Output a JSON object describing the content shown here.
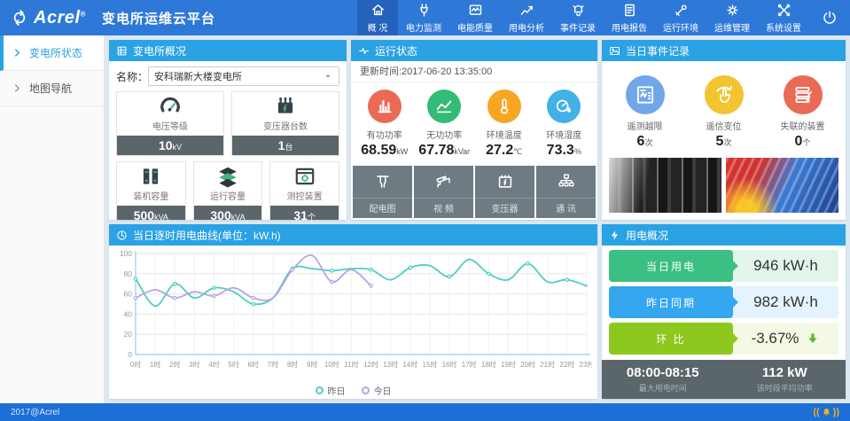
{
  "header": {
    "logo": "Acrel",
    "logo_reg": "®",
    "title": "变电所运维云平台",
    "nav": [
      {
        "label": "概 况"
      },
      {
        "label": "电力监测"
      },
      {
        "label": "电能质量"
      },
      {
        "label": "用电分析"
      },
      {
        "label": "事件记录"
      },
      {
        "label": "用电报告"
      },
      {
        "label": "运行环境"
      },
      {
        "label": "运维管理"
      },
      {
        "label": "系统设置"
      }
    ]
  },
  "sidebar": {
    "items": [
      {
        "label": "变电所状态"
      },
      {
        "label": "地图导航"
      }
    ]
  },
  "overview": {
    "title": "变电所概况",
    "name_label": "名称：",
    "name_value": "安科瑞新大楼变电所",
    "cards": [
      {
        "label": "电压等级",
        "value": "10",
        "unit": "kV"
      },
      {
        "label": "变压器台数",
        "value": "1",
        "unit": "台"
      },
      {
        "label": "装机容量",
        "value": "500",
        "unit": "kVA"
      },
      {
        "label": "运行容量",
        "value": "300",
        "unit": "kVA"
      },
      {
        "label": "测控装置",
        "value": "31",
        "unit": "个"
      }
    ]
  },
  "status": {
    "title": "运行状态",
    "update_time": "更新时间:2017-06-20 13:35:00",
    "stats": [
      {
        "label": "有功功率",
        "value": "68.59",
        "unit": "kW",
        "color": "#e96b56"
      },
      {
        "label": "无功功率",
        "value": "67.78",
        "unit": "kVar",
        "color": "#33bb77"
      },
      {
        "label": "环境温度",
        "value": "27.2",
        "unit": "℃",
        "color": "#f6a623"
      },
      {
        "label": "环境湿度",
        "value": "73.3",
        "unit": "%",
        "color": "#41b1e6"
      }
    ],
    "buttons": [
      {
        "label": "配电图"
      },
      {
        "label": "视 频"
      },
      {
        "label": "变压器"
      },
      {
        "label": "通 讯"
      }
    ]
  },
  "events": {
    "title": "当日事件记录",
    "stats": [
      {
        "label": "遥测越限",
        "value": "6",
        "unit": "次",
        "color": "#70a6ea"
      },
      {
        "label": "遥信变位",
        "value": "5",
        "unit": "次",
        "color": "#f2c430"
      },
      {
        "label": "失联的装置",
        "value": "0",
        "unit": "个",
        "color": "#e96b56"
      }
    ]
  },
  "chart_data": {
    "type": "line",
    "title": "当日逐时用电曲线(单位：kW.h)",
    "categories": [
      "0时",
      "1时",
      "2时",
      "3时",
      "4时",
      "5时",
      "6时",
      "7时",
      "8时",
      "9时",
      "10时",
      "11时",
      "12时",
      "13时",
      "14时",
      "15时",
      "16时",
      "17时",
      "18时",
      "19时",
      "20时",
      "21时",
      "22时",
      "23时"
    ],
    "series": [
      {
        "name": "昨日",
        "color": "#4fcdc5",
        "values": [
          75,
          48,
          70,
          56,
          66,
          62,
          50,
          56,
          85,
          85,
          83,
          85,
          84,
          74,
          86,
          88,
          77,
          94,
          80,
          74,
          90,
          72,
          74,
          68
        ]
      },
      {
        "name": "今日",
        "color": "#b5a5e2",
        "values": [
          56,
          64,
          56,
          62,
          58,
          66,
          56,
          56,
          84,
          98,
          72,
          84,
          68
        ]
      }
    ],
    "ylim": [
      0,
      100
    ],
    "yticks": [
      0,
      20,
      40,
      60,
      80,
      100
    ],
    "legend_position": "bottom",
    "grid": true
  },
  "usage": {
    "title": "用电概况",
    "rows": [
      {
        "label": "当日用电",
        "value": "946 kW·h",
        "bubble": "#3bbf83",
        "bg": "#e3f5eb"
      },
      {
        "label": "昨日同期",
        "value": "982 kW·h",
        "bubble": "#36a6f0",
        "bg": "#e4f3fd"
      },
      {
        "label": "环 比",
        "value": "-3.67%",
        "bubble": "#8dc81e",
        "bg": "#f3f9e4"
      }
    ],
    "footer": {
      "time": "08:00-08:15",
      "time_label": "最大用电时间",
      "power": "112 kW",
      "power_label": "该时段平均功率"
    }
  },
  "page_footer": {
    "copyright": "2017@Acrel"
  }
}
